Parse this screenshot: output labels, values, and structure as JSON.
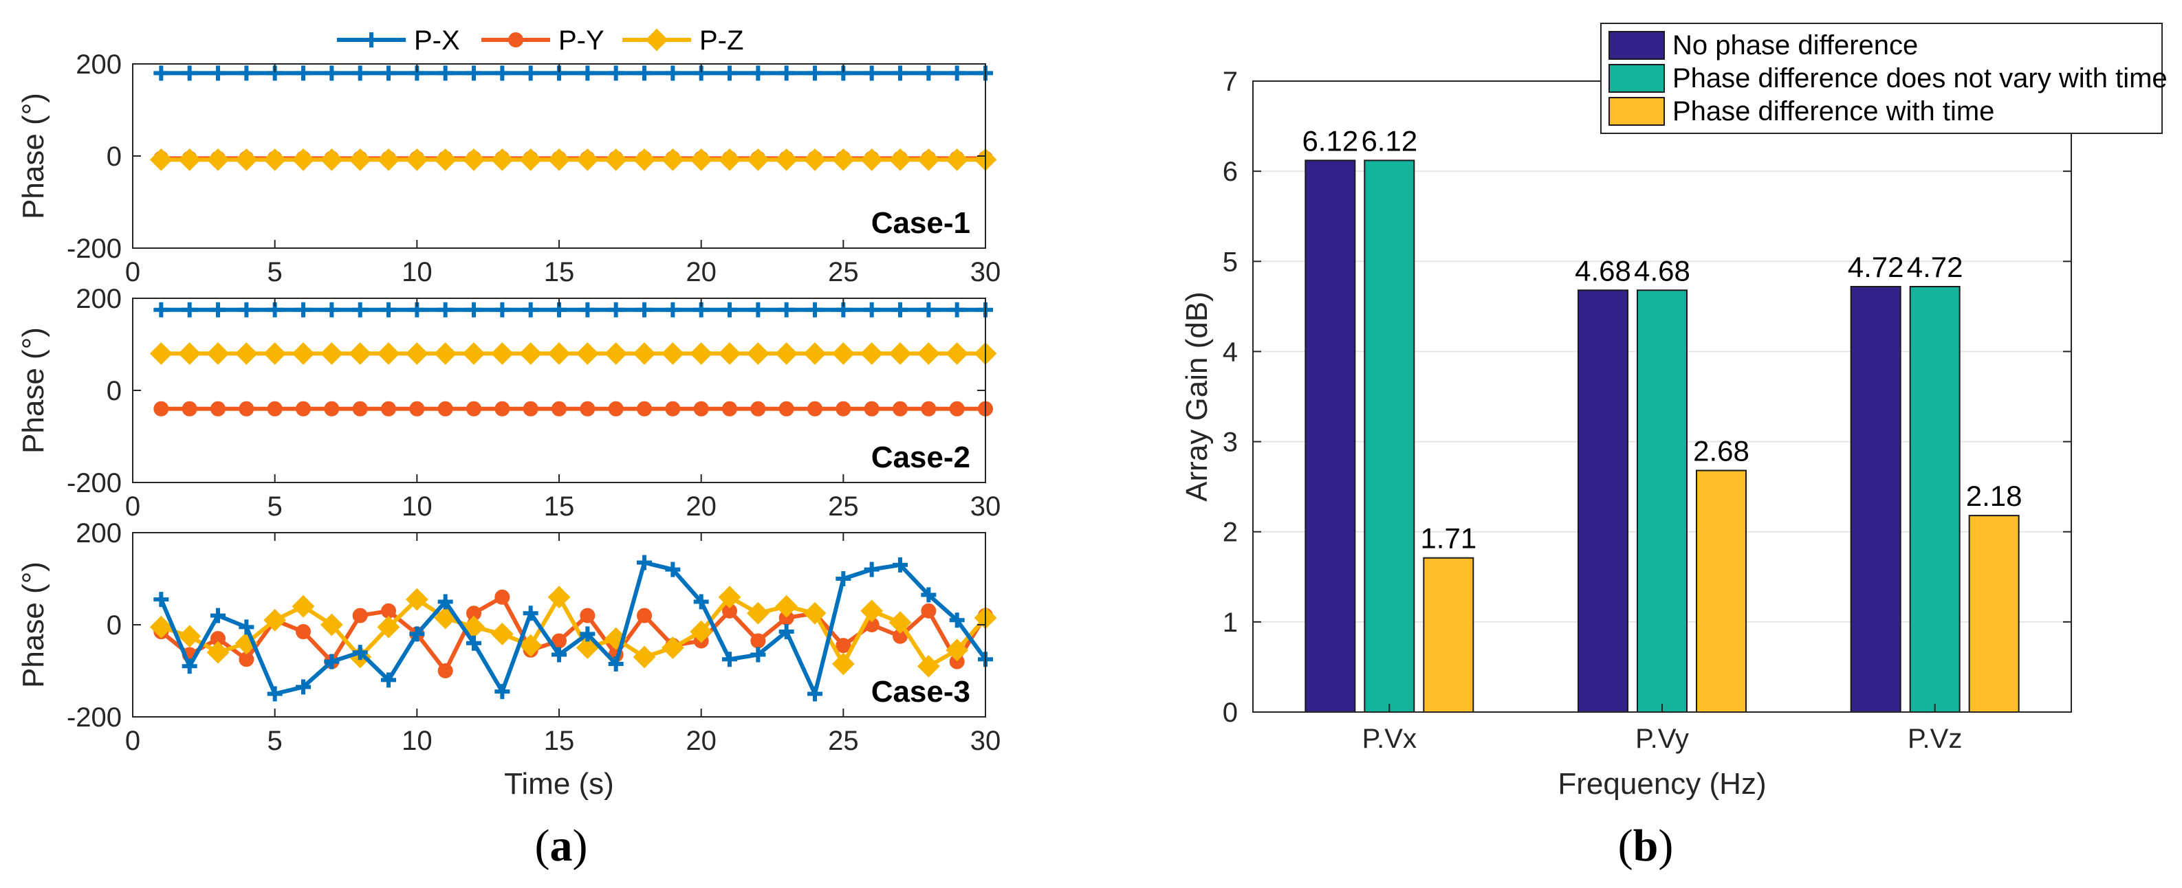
{
  "chart_data": [
    {
      "type": "line",
      "panel": "a",
      "panel_label_open": "(",
      "panel_label_letter": "a",
      "panel_label_close": ")",
      "legend": [
        "P-X",
        "P-Y",
        "P-Z"
      ],
      "xlabel": "Time (s)",
      "ylabel": "Phase (°)",
      "xlim": [
        0,
        30
      ],
      "ylim": [
        -200,
        200
      ],
      "xticks": [
        0,
        5,
        10,
        15,
        20,
        25,
        30
      ],
      "yticks": [
        -200,
        0,
        200
      ],
      "x": [
        1,
        2,
        3,
        4,
        5,
        6,
        7,
        8,
        9,
        10,
        11,
        12,
        13,
        14,
        15,
        16,
        17,
        18,
        19,
        20,
        21,
        22,
        23,
        24,
        25,
        26,
        27,
        28,
        29,
        30
      ],
      "subplots": [
        {
          "case_label": "Case-1",
          "series": [
            {
              "name": "P-X",
              "values": [
                180,
                180,
                180,
                180,
                180,
                180,
                180,
                180,
                180,
                180,
                180,
                180,
                180,
                180,
                180,
                180,
                180,
                180,
                180,
                180,
                180,
                180,
                180,
                180,
                180,
                180,
                180,
                180,
                180,
                180
              ]
            },
            {
              "name": "P-Y",
              "values": [
                -5,
                -5,
                -5,
                -5,
                -5,
                -5,
                -5,
                -5,
                -5,
                -5,
                -5,
                -5,
                -5,
                -5,
                -5,
                -5,
                -5,
                -5,
                -5,
                -5,
                -5,
                -5,
                -5,
                -5,
                -5,
                -5,
                -5,
                -5,
                -5,
                -5
              ]
            },
            {
              "name": "P-Z",
              "values": [
                -8,
                -8,
                -8,
                -8,
                -8,
                -8,
                -8,
                -8,
                -8,
                -8,
                -8,
                -8,
                -8,
                -8,
                -8,
                -8,
                -8,
                -8,
                -8,
                -8,
                -8,
                -8,
                -8,
                -8,
                -8,
                -8,
                -8,
                -8,
                -8,
                -8
              ]
            }
          ]
        },
        {
          "case_label": "Case-2",
          "series": [
            {
              "name": "P-X",
              "values": [
                175,
                175,
                175,
                175,
                175,
                175,
                175,
                175,
                175,
                175,
                175,
                175,
                175,
                175,
                175,
                175,
                175,
                175,
                175,
                175,
                175,
                175,
                175,
                175,
                175,
                175,
                175,
                175,
                175,
                175
              ]
            },
            {
              "name": "P-Y",
              "values": [
                -40,
                -40,
                -40,
                -40,
                -40,
                -40,
                -40,
                -40,
                -40,
                -40,
                -40,
                -40,
                -40,
                -40,
                -40,
                -40,
                -40,
                -40,
                -40,
                -40,
                -40,
                -40,
                -40,
                -40,
                -40,
                -40,
                -40,
                -40,
                -40,
                -40
              ]
            },
            {
              "name": "P-Z",
              "values": [
                80,
                80,
                80,
                80,
                80,
                80,
                80,
                80,
                80,
                80,
                80,
                80,
                80,
                80,
                80,
                80,
                80,
                80,
                80,
                80,
                80,
                80,
                80,
                80,
                80,
                80,
                80,
                80,
                80,
                80
              ]
            }
          ]
        },
        {
          "case_label": "Case-3",
          "series": [
            {
              "name": "P-X",
              "values": [
                55,
                -90,
                20,
                -5,
                -150,
                -135,
                -80,
                -60,
                -120,
                -20,
                50,
                -40,
                -145,
                25,
                -65,
                -20,
                -85,
                135,
                120,
                50,
                -75,
                -65,
                -15,
                -150,
                100,
                120,
                130,
                65,
                10,
                -75
              ]
            },
            {
              "name": "P-Y",
              "values": [
                -15,
                -65,
                -30,
                -75,
                10,
                -15,
                -80,
                20,
                30,
                -20,
                -100,
                25,
                60,
                -55,
                -35,
                20,
                -65,
                20,
                -45,
                -35,
                30,
                -35,
                15,
                25,
                -45,
                0,
                -25,
                30,
                -80,
                20
              ]
            },
            {
              "name": "P-Z",
              "values": [
                -5,
                -25,
                -60,
                -40,
                10,
                40,
                0,
                -70,
                -5,
                55,
                15,
                -5,
                -20,
                -45,
                60,
                -50,
                -30,
                -70,
                -50,
                -15,
                60,
                25,
                40,
                25,
                -85,
                30,
                5,
                -90,
                -55,
                15
              ]
            }
          ]
        }
      ]
    },
    {
      "type": "bar",
      "panel": "b",
      "panel_label_open": "(",
      "panel_label_letter": "b",
      "panel_label_close": ")",
      "categories": [
        "P.Vx",
        "P.Vy",
        "P.Vz"
      ],
      "xlabel": "Frequency (Hz)",
      "ylabel": "Array Gain (dB)",
      "ylim": [
        0,
        7
      ],
      "yticks": [
        0,
        1,
        2,
        3,
        4,
        5,
        6,
        7
      ],
      "grid": true,
      "legend_position": "top-right",
      "series": [
        {
          "name": "No phase difference",
          "values": [
            6.12,
            4.68,
            4.72
          ],
          "labels": [
            "6.12",
            "4.68",
            "4.72"
          ]
        },
        {
          "name": "Phase difference does not vary with time",
          "values": [
            6.12,
            4.68,
            4.72
          ],
          "labels": [
            "6.12",
            "4.68",
            "4.72"
          ]
        },
        {
          "name": "Phase difference with time",
          "values": [
            1.71,
            2.68,
            2.18
          ],
          "labels": [
            "1.71",
            "2.68",
            "2.18"
          ]
        }
      ]
    }
  ],
  "colors": {
    "px": "#0072BD",
    "py": "#F05A1E",
    "pz": "#F7B500",
    "bar1": "#332288",
    "bar2": "#14B39B",
    "bar3": "#FDBE2A",
    "axis": "#262626",
    "grid": "#E6E6E6"
  }
}
